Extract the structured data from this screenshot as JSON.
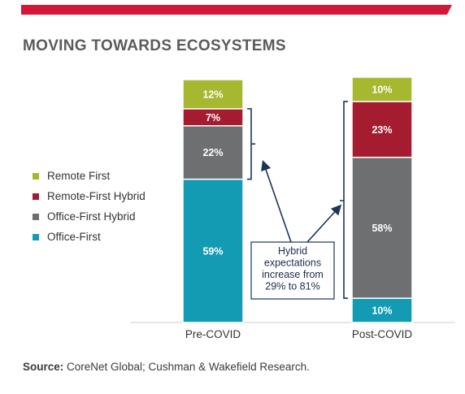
{
  "colors": {
    "accent_bar": "#d3173a",
    "remote_first": "#a6b82f",
    "remote_first_hybrid": "#a51c30",
    "office_first_hybrid": "#6e6f71",
    "office_first": "#139bb3",
    "annotation": "#1d3557"
  },
  "title": "MOVING TOWARDS ECOSYSTEMS",
  "legend": [
    {
      "label": "Remote First",
      "color": "#a6b82f"
    },
    {
      "label": "Remote-First Hybrid",
      "color": "#a51c30"
    },
    {
      "label": "Office-First Hybrid",
      "color": "#6e6f71"
    },
    {
      "label": "Office-First",
      "color": "#139bb3"
    }
  ],
  "source": {
    "label": "Source:",
    "text": " CoreNet Global; Cushman & Wakefield Research."
  },
  "annotation": {
    "lines": [
      "Hybrid",
      "expectations",
      "increase from",
      "29% to 81%"
    ]
  },
  "chart_data": {
    "type": "bar",
    "stacked": true,
    "categories": [
      "Pre-COVID",
      "Post-COVID"
    ],
    "series": [
      {
        "name": "Office-First",
        "values": [
          59,
          10
        ],
        "labels": [
          "59%",
          "10%"
        ],
        "color": "#139bb3"
      },
      {
        "name": "Office-First Hybrid",
        "values": [
          22,
          58
        ],
        "labels": [
          "22%",
          "58%"
        ],
        "color": "#6e6f71"
      },
      {
        "name": "Remote-First Hybrid",
        "values": [
          7,
          23
        ],
        "labels": [
          "7%",
          "23%"
        ],
        "color": "#a51c30"
      },
      {
        "name": "Remote First",
        "values": [
          12,
          10
        ],
        "labels": [
          "12%",
          "10%"
        ],
        "color": "#a6b82f"
      }
    ],
    "ylim": [
      0,
      100
    ],
    "grid": false,
    "legend_position": "left"
  }
}
